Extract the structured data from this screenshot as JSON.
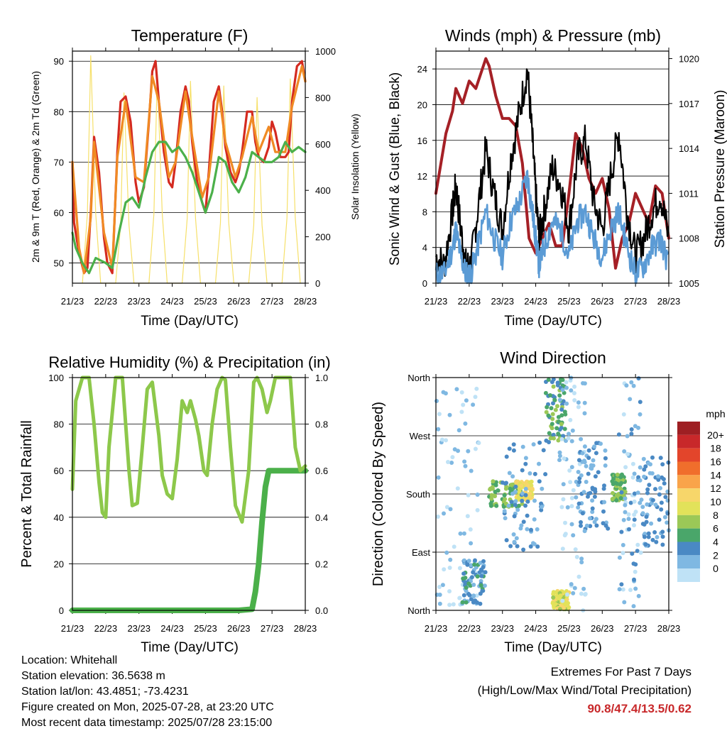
{
  "x_tick_labels": [
    "21/23",
    "22/23",
    "23/23",
    "24/23",
    "25/23",
    "26/23",
    "27/23",
    "28/23"
  ],
  "colors": {
    "temp_red": "#d42a20",
    "temp_orange": "#f08a24",
    "dewpoint_green": "#4bb04a",
    "solar_yellow": "#f6e06a",
    "pressure_maroon": "#a52026",
    "wind_blue": "#5b9bd5",
    "gust_black": "#000000",
    "rh_green": "#8dc84b",
    "rain_green": "#4bb04a",
    "extremes_red": "#c8282a"
  },
  "chart_data": [
    {
      "type": "line",
      "title": "Temperature (F)",
      "xlabel": "Time (Day/UTC)",
      "ylabel": "2m & 9m T (Red, Orange) & 2m Td (Green)",
      "y2label": "Solar Insolation (Yellow)",
      "ylim": [
        46,
        92
      ],
      "yticks": [
        50,
        60,
        70,
        80,
        90
      ],
      "y2lim": [
        0,
        1000
      ],
      "y2ticks": [
        0,
        200,
        400,
        600,
        800,
        1000
      ],
      "xlim": [
        0,
        7
      ],
      "grid": true,
      "series": [
        {
          "name": "2m T",
          "color_key": "temp_red",
          "x": [
            0,
            0.05,
            0.2,
            0.35,
            0.45,
            0.55,
            0.65,
            0.8,
            0.95,
            1.05,
            1.2,
            1.35,
            1.45,
            1.6,
            1.75,
            1.9,
            2.0,
            2.15,
            2.3,
            2.4,
            2.5,
            2.6,
            2.75,
            2.9,
            3.0,
            3.1,
            3.25,
            3.4,
            3.5,
            3.6,
            3.75,
            3.9,
            4.0,
            4.1,
            4.25,
            4.4,
            4.5,
            4.6,
            4.75,
            4.9,
            5.0,
            5.1,
            5.25,
            5.4,
            5.5,
            5.6,
            5.75,
            5.9,
            6.0,
            6.1,
            6.25,
            6.4,
            6.5,
            6.6,
            6.75,
            6.9,
            7.0
          ],
          "y": [
            70,
            58,
            52,
            48,
            49,
            60,
            75,
            68,
            55,
            50,
            48,
            72,
            82,
            83,
            78,
            66,
            62,
            65,
            78,
            88,
            90,
            82,
            72,
            66,
            65,
            70,
            80,
            85,
            82,
            74,
            66,
            62,
            60,
            68,
            82,
            85,
            80,
            73,
            68,
            66,
            68,
            72,
            80,
            80,
            74,
            71,
            70,
            73,
            78,
            76,
            71,
            71,
            72,
            82,
            89,
            90,
            86
          ]
        },
        {
          "name": "9m T",
          "color_key": "temp_orange",
          "x": [
            0,
            0.2,
            0.35,
            0.55,
            0.65,
            0.95,
            1.2,
            1.35,
            1.6,
            1.9,
            2.15,
            2.4,
            2.6,
            2.9,
            3.1,
            3.4,
            3.6,
            3.9,
            4.1,
            4.4,
            4.6,
            4.9,
            5.1,
            5.4,
            5.6,
            5.9,
            6.1,
            6.4,
            6.6,
            6.9,
            7.0
          ],
          "y": [
            70,
            53,
            48,
            59,
            74,
            56,
            49,
            71,
            82,
            67,
            66,
            87,
            82,
            67,
            70,
            84,
            75,
            63,
            67,
            84,
            74,
            67,
            71,
            79,
            72,
            77,
            72,
            72,
            81,
            89,
            86
          ]
        },
        {
          "name": "2m Td",
          "color_key": "dewpoint_green",
          "x": [
            0,
            0.1,
            0.3,
            0.5,
            0.7,
            1.0,
            1.2,
            1.4,
            1.6,
            1.8,
            2.0,
            2.2,
            2.4,
            2.6,
            2.8,
            3.0,
            3.2,
            3.4,
            3.6,
            3.8,
            4.0,
            4.2,
            4.4,
            4.6,
            4.8,
            5.0,
            5.2,
            5.4,
            5.6,
            5.8,
            6.0,
            6.2,
            6.4,
            6.6,
            6.8,
            7.0
          ],
          "y": [
            56,
            53,
            50,
            48,
            51,
            50,
            49,
            56,
            62,
            63,
            61,
            67,
            72,
            74,
            74,
            72,
            73,
            71,
            68,
            64,
            60,
            64,
            71,
            70,
            66,
            64,
            67,
            72,
            71,
            70,
            70,
            71,
            74,
            72,
            73,
            72
          ]
        },
        {
          "name": "Solar",
          "axis": "y2",
          "color_key": "solar_yellow",
          "x": [
            0.3,
            0.45,
            0.55,
            0.7,
            0.85,
            1.3,
            1.45,
            1.55,
            1.7,
            1.85,
            2.3,
            2.45,
            2.55,
            2.7,
            2.85,
            3.3,
            3.45,
            3.55,
            3.7,
            3.85,
            4.3,
            4.45,
            4.55,
            4.7,
            4.85,
            5.3,
            5.45,
            5.55,
            5.7,
            5.85,
            6.3,
            6.45,
            6.55,
            6.7,
            6.85
          ],
          "y": [
            0,
            300,
            980,
            300,
            0,
            0,
            250,
            820,
            250,
            0,
            0,
            300,
            900,
            300,
            0,
            0,
            280,
            870,
            280,
            0,
            0,
            260,
            850,
            260,
            0,
            0,
            250,
            800,
            250,
            0,
            0,
            280,
            880,
            280,
            0
          ]
        }
      ]
    },
    {
      "type": "line",
      "title": "Winds (mph) & Pressure (mb)",
      "xlabel": "Time (Day/UTC)",
      "ylabel": "Sonic Wind & Gust (Blue, Black)",
      "y2label": "Station Pressure (Maroon)",
      "ylim": [
        0,
        26
      ],
      "yticks": [
        0,
        4,
        8,
        12,
        16,
        20,
        24
      ],
      "y2lim": [
        1005,
        1020.5
      ],
      "y2ticks": [
        1005,
        1008,
        1011,
        1014,
        1017,
        1020
      ],
      "xlim": [
        0,
        7
      ],
      "grid": true,
      "series": [
        {
          "name": "Gust",
          "color_key": "gust_black",
          "x": [
            0,
            0.25,
            0.5,
            0.6,
            0.75,
            0.9,
            1.05,
            1.25,
            1.5,
            1.75,
            2.0,
            2.25,
            2.5,
            2.75,
            2.9,
            3.0,
            3.1,
            3.25,
            3.5,
            3.75,
            4.0,
            4.25,
            4.5,
            4.75,
            5.0,
            5.25,
            5.5,
            5.75,
            6.0,
            6.25,
            6.5,
            6.75,
            7.0
          ],
          "y": [
            3,
            2,
            8,
            11,
            6,
            2,
            2,
            8,
            15,
            10,
            6,
            14,
            19,
            24,
            16,
            10,
            5,
            8,
            13,
            11,
            6,
            14,
            16,
            9,
            6,
            12,
            17,
            8,
            3,
            5,
            8,
            10,
            5
          ]
        },
        {
          "name": "Sonic Wind",
          "color_key": "wind_blue",
          "x": [
            0,
            0.25,
            0.5,
            0.6,
            0.75,
            0.9,
            1.05,
            1.25,
            1.5,
            1.75,
            2.0,
            2.25,
            2.5,
            2.75,
            2.9,
            3.0,
            3.1,
            3.25,
            3.5,
            3.75,
            4.0,
            4.25,
            4.5,
            4.75,
            5.0,
            5.25,
            5.5,
            5.75,
            6.0,
            6.25,
            6.5,
            6.75,
            7.0
          ],
          "y": [
            1,
            1,
            4,
            6,
            3,
            1,
            1,
            4,
            8,
            5,
            3,
            7,
            9,
            12,
            8,
            5,
            2,
            4,
            7,
            6,
            3,
            7,
            8,
            5,
            3,
            6,
            8,
            4,
            1,
            2,
            4,
            5,
            2
          ]
        },
        {
          "name": "Pressure",
          "axis": "y2",
          "color_key": "pressure_maroon",
          "x": [
            0,
            0.3,
            0.5,
            0.6,
            0.8,
            1.0,
            1.2,
            1.5,
            1.6,
            1.8,
            2.0,
            2.2,
            2.4,
            2.6,
            2.8,
            3.0,
            3.2,
            3.4,
            3.6,
            3.8,
            4.0,
            4.2,
            4.4,
            4.6,
            4.8,
            5.0,
            5.2,
            5.4,
            5.6,
            5.8,
            6.0,
            6.2,
            6.4,
            6.6,
            6.8,
            7.0
          ],
          "y": [
            1011,
            1015,
            1016.5,
            1018,
            1017,
            1018.5,
            1018,
            1020,
            1019.5,
            1017.5,
            1016,
            1016,
            1015.5,
            1013,
            1008,
            1007,
            1008,
            1009,
            1007.5,
            1007.5,
            1011,
            1015,
            1014,
            1012,
            1011,
            1012,
            1010,
            1006,
            1008,
            1009,
            1011,
            1010,
            1009,
            1011.5,
            1011,
            1008
          ]
        }
      ]
    },
    {
      "type": "line",
      "title": "Relative Humidity (%) & Precipitation (in)",
      "xlabel": "Time (Day/UTC)",
      "ylabel": "Percent & Total Rainfall",
      "ylim": [
        0,
        100
      ],
      "yticks": [
        0,
        20,
        40,
        60,
        80,
        100
      ],
      "y2lim": [
        0,
        1.0
      ],
      "y2ticks": [
        "0.0",
        "0.2",
        "0.4",
        "0.6",
        "0.8",
        "1.0"
      ],
      "xlim": [
        0,
        7
      ],
      "grid": true,
      "series": [
        {
          "name": "RH",
          "color_key": "rh_green",
          "x": [
            0,
            0.1,
            0.3,
            0.5,
            0.65,
            0.8,
            0.9,
            1.0,
            1.1,
            1.3,
            1.5,
            1.7,
            1.8,
            1.95,
            2.1,
            2.25,
            2.4,
            2.6,
            2.7,
            2.85,
            3.0,
            3.15,
            3.3,
            3.45,
            3.55,
            3.7,
            3.8,
            3.95,
            4.05,
            4.2,
            4.35,
            4.5,
            4.6,
            4.75,
            4.9,
            5.1,
            5.3,
            5.45,
            5.55,
            5.7,
            5.85,
            5.95,
            6.1,
            6.25,
            6.4,
            6.55,
            6.7,
            6.85,
            7.0
          ],
          "y": [
            52,
            90,
            100,
            100,
            80,
            55,
            42,
            40,
            70,
            100,
            100,
            60,
            45,
            46,
            70,
            95,
            98,
            75,
            58,
            50,
            48,
            65,
            90,
            85,
            90,
            82,
            75,
            60,
            58,
            80,
            95,
            100,
            99,
            70,
            45,
            38,
            60,
            98,
            100,
            95,
            85,
            90,
            100,
            100,
            100,
            100,
            70,
            60,
            62
          ]
        },
        {
          "name": "Total Rainfall",
          "axis": "y2",
          "color_key": "rain_green",
          "x": [
            0,
            1,
            2,
            3,
            4,
            5.0,
            5.4,
            5.5,
            5.6,
            5.7,
            5.8,
            5.9,
            6.0,
            6.5,
            7.0
          ],
          "y": [
            0,
            0,
            0,
            0,
            0,
            0.0,
            0.005,
            0.08,
            0.2,
            0.38,
            0.53,
            0.6,
            0.6,
            0.6,
            0.6
          ]
        }
      ]
    },
    {
      "type": "scatter",
      "title": "Wind Direction",
      "xlabel": "Time (Day/UTC)",
      "ylabel": "Direction (Colored By Speed)",
      "yticks": [
        "North",
        "East",
        "South",
        "West",
        "North"
      ],
      "ylim": [
        0,
        360
      ],
      "xlim": [
        0,
        7
      ],
      "grid": true,
      "colorbar": {
        "label": "mph",
        "levels": [
          "20+",
          "18",
          "16",
          "14",
          "12",
          "10",
          "8",
          "6",
          "4",
          "2",
          "0"
        ],
        "colors": [
          "#9e1f23",
          "#c8282a",
          "#e3452b",
          "#f06e2c",
          "#f9a44a",
          "#f7d66a",
          "#e2e25a",
          "#9bc857",
          "#4aa66a",
          "#4a89c4",
          "#7fb8e2",
          "#bfe2f6"
        ]
      },
      "clusters": [
        {
          "x": [
            0.0,
            1.3
          ],
          "y": [
            0,
            360
          ],
          "speed": 1
        },
        {
          "x": [
            0.8,
            1.5
          ],
          "y": [
            10,
            80
          ],
          "speed": 4
        },
        {
          "x": [
            1.6,
            2.6
          ],
          "y": [
            160,
            200
          ],
          "speed": 7
        },
        {
          "x": [
            2.4,
            2.9
          ],
          "y": [
            170,
            200
          ],
          "speed": 11
        },
        {
          "x": [
            2.0,
            3.3
          ],
          "y": [
            90,
            260
          ],
          "speed": 3
        },
        {
          "x": [
            3.3,
            3.9
          ],
          "y": [
            260,
            360
          ],
          "speed": 6
        },
        {
          "x": [
            3.5,
            4.0
          ],
          "y": [
            0,
            30
          ],
          "speed": 10
        },
        {
          "x": [
            3.7,
            4.5
          ],
          "y": [
            0,
            360
          ],
          "speed": 1
        },
        {
          "x": [
            4.3,
            5.2
          ],
          "y": [
            120,
            260
          ],
          "speed": 3
        },
        {
          "x": [
            5.3,
            5.7
          ],
          "y": [
            170,
            210
          ],
          "speed": 7
        },
        {
          "x": [
            5.5,
            6.2
          ],
          "y": [
            0,
            360
          ],
          "speed": 2
        },
        {
          "x": [
            6.2,
            7.0
          ],
          "y": [
            100,
            240
          ],
          "speed": 3
        }
      ]
    }
  ],
  "info": {
    "location": "Location: Whitehall",
    "elevation": "Station elevation: 36.5638 m",
    "latlon": "Station lat/lon: 43.4851; -73.4231",
    "created": "Figure created on Mon, 2025-07-28, at 23:20 UTC",
    "recent": "Most recent data timestamp: 2025/07/28 23:15:00"
  },
  "extremes": {
    "title": "Extremes For Past 7 Days",
    "subtitle": "(High/Low/Max Wind/Total Precipitation)",
    "values": "90.8/47.4/13.5/0.62"
  }
}
